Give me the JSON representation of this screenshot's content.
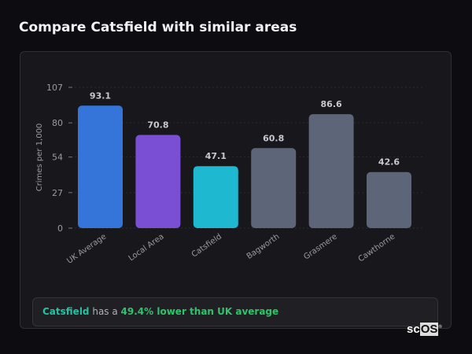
{
  "title": "Compare Catsfield with similar areas",
  "chart_data": {
    "type": "bar",
    "title": "",
    "xlabel": "",
    "ylabel": "Crimes per 1,000",
    "ylim": [
      0,
      107
    ],
    "yticks": [
      0,
      27,
      54,
      80,
      107
    ],
    "grid": true,
    "categories": [
      "UK Average",
      "Local Area",
      "Catsfield",
      "Bagworth",
      "Grasmere",
      "Cawthorne"
    ],
    "values": [
      93.1,
      70.8,
      47.1,
      60.8,
      86.6,
      42.6
    ],
    "data_labels": [
      "93.1",
      "70.8",
      "47.1",
      "60.8",
      "86.6",
      "42.6"
    ],
    "colors": [
      "#3574d8",
      "#7b4fd4",
      "#1eb8d0",
      "#5c6678",
      "#5c6678",
      "#5c6678"
    ]
  },
  "summary": {
    "area": "Catsfield",
    "connector": " has a ",
    "comparison": "49.4% lower than UK average",
    "area_color": "#22c3a0",
    "comparison_color": "#2ec46a"
  },
  "logo": {
    "text_a": "sc",
    "text_b": "OS",
    "mark": "®"
  }
}
